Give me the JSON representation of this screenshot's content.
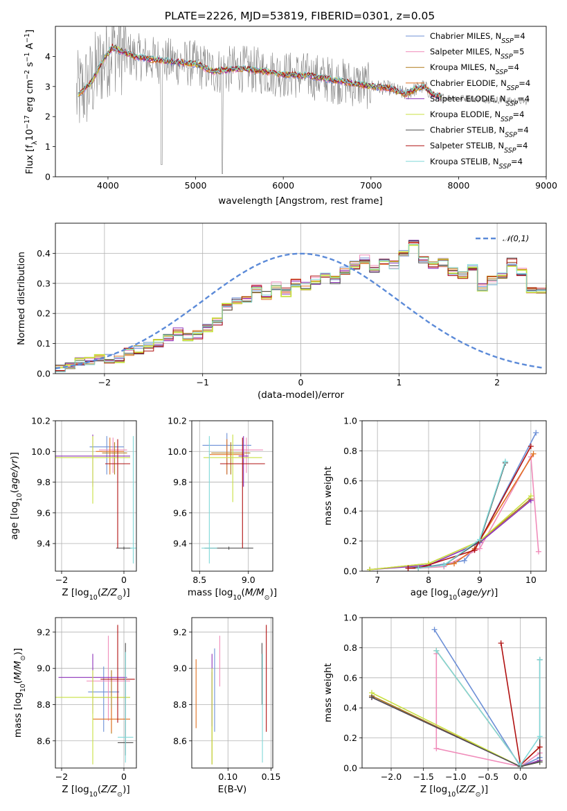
{
  "figure": {
    "title": "PLATE=2226, MJD=53819, FIBERID=0301, z=0.05"
  },
  "colors": {
    "Chabrier MILES": "#6c8fd6",
    "Salpeter MILES": "#f08cba",
    "Kroupa MILES": "#b07a1a",
    "Chabrier ELODIE": "#e07020",
    "Salpeter ELODIE": "#8c30b8",
    "Kroupa ELODIE": "#c8e040",
    "Chabrier STELIB": "#505050",
    "Salpeter STELIB": "#b01010",
    "Kroupa STELIB": "#80d8d8",
    "data": "#808080",
    "normal": "#5b8ad8",
    "grid": "#b0b0b0"
  },
  "chart_data": [
    {
      "id": "spectrum",
      "type": "line",
      "xlabel": "wavelength [Angstrom, rest frame]",
      "ylabel": "Flux [f_λ 10^-17 erg cm^-2 s^-1 A^-1]",
      "xlim": [
        3400,
        9000
      ],
      "ylim": [
        0,
        5
      ],
      "xticks": [
        "4000",
        "5000",
        "6000",
        "7000",
        "8000",
        "9000"
      ],
      "yticks": [
        "0",
        "1",
        "2",
        "3",
        "4"
      ],
      "grid": false,
      "legend_position": "right",
      "legend": [
        {
          "name": "Chabrier MILES",
          "nssp": "4"
        },
        {
          "name": "Salpeter MILES",
          "nssp": "5"
        },
        {
          "name": "Kroupa MILES",
          "nssp": "4"
        },
        {
          "name": "Chabrier ELODIE",
          "nssp": "4"
        },
        {
          "name": "Salpeter ELODIE",
          "nssp": "4"
        },
        {
          "name": "Kroupa ELODIE",
          "nssp": "4"
        },
        {
          "name": "Chabrier STELIB",
          "nssp": "4"
        },
        {
          "name": "Salpeter STELIB",
          "nssp": "4"
        },
        {
          "name": "Kroupa STELIB",
          "nssp": "4"
        }
      ],
      "continuum_model": {
        "x": [
          3650,
          3800,
          3950,
          4050,
          4300,
          4500,
          4800,
          5000,
          5200,
          5500,
          5800,
          6000,
          6300,
          6600,
          6800,
          7000,
          7200,
          7400,
          7500,
          7600,
          7700,
          7800
        ],
        "y": [
          2.7,
          3.1,
          3.9,
          4.3,
          4.0,
          3.9,
          3.8,
          3.75,
          3.5,
          3.6,
          3.5,
          3.4,
          3.35,
          3.2,
          3.1,
          3.0,
          2.95,
          2.75,
          2.9,
          3.0,
          2.75,
          2.65
        ]
      }
    },
    {
      "id": "residuals",
      "type": "histogram",
      "xlabel": "(data-model)/error",
      "ylabel": "Normed distribution",
      "xlim": [
        -2.5,
        2.5
      ],
      "ylim": [
        0,
        0.5
      ],
      "xticks": [
        "-2",
        "-1",
        "0",
        "1",
        "2"
      ],
      "yticks": [
        "0.0",
        "0.1",
        "0.2",
        "0.3",
        "0.4"
      ],
      "grid": true,
      "legend_label": "𝒩(0,1)",
      "bin_width": 0.1,
      "bins_start": -2.5,
      "mean_profile": [
        0.02,
        0.03,
        0.04,
        0.04,
        0.05,
        0.05,
        0.05,
        0.07,
        0.08,
        0.09,
        0.1,
        0.12,
        0.14,
        0.12,
        0.13,
        0.15,
        0.17,
        0.22,
        0.24,
        0.25,
        0.28,
        0.26,
        0.29,
        0.27,
        0.3,
        0.29,
        0.31,
        0.33,
        0.31,
        0.34,
        0.36,
        0.38,
        0.35,
        0.37,
        0.36,
        0.4,
        0.43,
        0.38,
        0.36,
        0.37,
        0.34,
        0.33,
        0.35,
        0.29,
        0.31,
        0.33,
        0.37,
        0.34,
        0.28,
        0.27,
        0.3,
        0.26,
        0.24,
        0.2,
        0.21,
        0.17,
        0.15,
        0.18,
        0.13,
        0.14,
        0.17,
        0.12,
        0.12,
        0.1,
        0.11,
        0.09,
        0.08,
        0.07,
        0.06,
        0.05,
        0.05,
        0.04,
        0.04,
        0.03
      ]
    },
    {
      "id": "age_vs_Z",
      "type": "scatter",
      "xlabel": "Z [log10(Z/Z⊙)]",
      "ylabel": "age  [log10(age/yr)]",
      "xlim": [
        -2.2,
        0.4
      ],
      "ylim": [
        9.22,
        10.2
      ],
      "xticks": [
        "-2",
        "0"
      ],
      "yticks": [
        "9.4",
        "9.6",
        "9.8",
        "10.0",
        "10.2"
      ],
      "grid": true,
      "series": [
        {
          "label": "Chabrier MILES",
          "x": -0.55,
          "xerr": 0.55,
          "y": 10.03,
          "yerr": [
            0.18,
            0.07
          ]
        },
        {
          "label": "Salpeter MILES",
          "x": -0.35,
          "xerr": 0.45,
          "y": 10.01,
          "yerr": [
            0.15,
            0.08
          ]
        },
        {
          "label": "Kroupa MILES",
          "x": -0.3,
          "xerr": 0.4,
          "y": 9.99,
          "yerr": [
            0.14,
            0.07
          ]
        },
        {
          "label": "Chabrier ELODIE",
          "x": -0.45,
          "xerr": 0.45,
          "y": 10.0,
          "yerr": [
            0.15,
            0.09
          ]
        },
        {
          "label": "Salpeter ELODIE",
          "x": -1.0,
          "xerr": 1.2,
          "y": 9.97,
          "yerr": [
            0.2,
            0.14
          ]
        },
        {
          "label": "Kroupa ELODIE",
          "x": -1.0,
          "xerr": 1.2,
          "y": 9.96,
          "yerr": [
            0.3,
            0.14
          ]
        },
        {
          "label": "Chabrier STELIB",
          "x": 0.0,
          "xerr": 0.25,
          "y": 9.37,
          "yerr": [
            0.01,
            0.01
          ]
        },
        {
          "label": "Salpeter STELIB",
          "x": -0.2,
          "xerr": 0.4,
          "y": 9.92,
          "yerr": [
            0.55,
            0.16
          ]
        },
        {
          "label": "Kroupa STELIB",
          "x": 0.3,
          "xerr": 0.1,
          "y": 9.37,
          "yerr": [
            0.1,
            0.73
          ]
        }
      ]
    },
    {
      "id": "age_vs_mass",
      "type": "scatter",
      "xlabel": "mass [log10(M/M⊙)]",
      "ylabel": "",
      "xlim": [
        8.42,
        9.25
      ],
      "ylim": [
        9.22,
        10.2
      ],
      "xticks": [
        "8.5",
        "9.0"
      ],
      "yticks": [
        "9.4",
        "9.6",
        "9.8",
        "10.0",
        "10.2"
      ],
      "grid": true,
      "series": [
        {
          "label": "Chabrier MILES",
          "x": 8.78,
          "xerr": 0.25,
          "y": 10.04,
          "yerr": [
            0.19,
            0.08
          ]
        },
        {
          "label": "Salpeter MILES",
          "x": 8.98,
          "xerr": 0.17,
          "y": 10.01,
          "yerr": [
            0.15,
            0.08
          ]
        },
        {
          "label": "Kroupa MILES",
          "x": 8.82,
          "xerr": 0.2,
          "y": 9.99,
          "yerr": [
            0.14,
            0.07
          ]
        },
        {
          "label": "Chabrier ELODIE",
          "x": 8.78,
          "xerr": 0.18,
          "y": 9.98,
          "yerr": [
            0.13,
            0.1
          ]
        },
        {
          "label": "Salpeter ELODIE",
          "x": 8.95,
          "xerr": 0.05,
          "y": 9.97,
          "yerr": [
            0.2,
            0.13
          ]
        },
        {
          "label": "Kroupa ELODIE",
          "x": 8.84,
          "xerr": 0.3,
          "y": 9.96,
          "yerr": [
            0.29,
            0.15
          ]
        },
        {
          "label": "Chabrier STELIB",
          "x": 8.8,
          "xerr": 0.25,
          "y": 9.37,
          "yerr": [
            0.01,
            0.01
          ]
        },
        {
          "label": "Salpeter STELIB",
          "x": 8.94,
          "xerr": 0.23,
          "y": 9.92,
          "yerr": [
            0.55,
            0.17
          ]
        },
        {
          "label": "Kroupa STELIB",
          "x": 8.6,
          "xerr": 0.08,
          "y": 9.37,
          "yerr": [
            0.1,
            0.73
          ]
        }
      ]
    },
    {
      "id": "weight_vs_age",
      "type": "line",
      "xlabel": "age  [log10(age/yr)]",
      "ylabel": "mass weight",
      "xlim": [
        6.7,
        10.3
      ],
      "ylim": [
        0,
        1
      ],
      "xticks": [
        "7",
        "8",
        "9",
        "10"
      ],
      "yticks": [
        "0.0",
        "0.2",
        "0.4",
        "0.6",
        "0.8",
        "1.0"
      ],
      "grid": true,
      "series": [
        {
          "label": "Chabrier MILES",
          "x": [
            7.8,
            8.7,
            9.0,
            10.1
          ],
          "y": [
            0.02,
            0.07,
            0.2,
            0.92
          ]
        },
        {
          "label": "Salpeter MILES",
          "x": [
            7.8,
            8.3,
            9.0,
            10.0,
            10.15
          ],
          "y": [
            0.02,
            0.03,
            0.15,
            0.76,
            0.13
          ]
        },
        {
          "label": "Kroupa MILES",
          "x": [
            6.85,
            8.0,
            9.0,
            10.0
          ],
          "y": [
            0.01,
            0.05,
            0.2,
            0.48
          ]
        },
        {
          "label": "Chabrier ELODIE",
          "x": [
            7.8,
            8.5,
            8.9,
            10.05
          ],
          "y": [
            0.02,
            0.05,
            0.15,
            0.78
          ]
        },
        {
          "label": "Salpeter ELODIE",
          "x": [
            6.85,
            8.0,
            9.0,
            10.0
          ],
          "y": [
            0.01,
            0.04,
            0.19,
            0.47
          ]
        },
        {
          "label": "Kroupa ELODIE",
          "x": [
            6.85,
            8.0,
            9.0,
            10.0
          ],
          "y": [
            0.01,
            0.05,
            0.2,
            0.5
          ]
        },
        {
          "label": "Chabrier STELIB",
          "x": [
            7.6,
            8.3,
            9.0,
            9.5
          ],
          "y": [
            0.02,
            0.04,
            0.2,
            0.72
          ]
        },
        {
          "label": "Salpeter STELIB",
          "x": [
            7.6,
            7.8,
            8.9,
            10.0
          ],
          "y": [
            0.02,
            0.02,
            0.14,
            0.83
          ]
        },
        {
          "label": "Kroupa STELIB",
          "x": [
            7.8,
            8.3,
            9.0,
            9.5
          ],
          "y": [
            0.02,
            0.04,
            0.21,
            0.73
          ]
        }
      ]
    },
    {
      "id": "mass_vs_Z",
      "type": "scatter",
      "xlabel": "Z [log10(Z/Z⊙)]",
      "ylabel": "mass [log10(M/M⊙)]",
      "xlim": [
        -2.2,
        0.4
      ],
      "ylim": [
        8.45,
        9.28
      ],
      "xticks": [
        "-2",
        "0"
      ],
      "yticks": [
        "8.6",
        "8.8",
        "9.0",
        "9.2"
      ],
      "grid": true,
      "series": [
        {
          "label": "Chabrier MILES",
          "x": -0.65,
          "xerr": 0.5,
          "y": 8.87,
          "yerr": [
            0.22,
            0.14
          ]
        },
        {
          "label": "Salpeter MILES",
          "x": -0.5,
          "xerr": 0.7,
          "y": 8.93,
          "yerr": [
            0.22,
            0.25
          ]
        },
        {
          "label": "Kroupa MILES",
          "x": -0.4,
          "xerr": 0.6,
          "y": 8.84,
          "yerr": [
            0.2,
            0.15
          ]
        },
        {
          "label": "Chabrier ELODIE",
          "x": -0.4,
          "xerr": 0.6,
          "y": 8.72,
          "yerr": [
            0.07,
            0.06
          ]
        },
        {
          "label": "Salpeter ELODIE",
          "x": -1.0,
          "xerr": 1.1,
          "y": 8.95,
          "yerr": [
            0.2,
            0.13
          ]
        },
        {
          "label": "Kroupa ELODIE",
          "x": -1.0,
          "xerr": 1.2,
          "y": 8.84,
          "yerr": [
            0.37,
            0.15
          ]
        },
        {
          "label": "Chabrier STELIB",
          "x": 0.05,
          "xerr": 0.25,
          "y": 8.59,
          "yerr": [
            0.07,
            0.55
          ]
        },
        {
          "label": "Salpeter STELIB",
          "x": -0.2,
          "xerr": 0.55,
          "y": 8.94,
          "yerr": [
            0.24,
            0.3
          ]
        },
        {
          "label": "Kroupa STELIB",
          "x": 0.05,
          "xerr": 0.25,
          "y": 8.62,
          "yerr": [
            0.14,
            0.47
          ]
        }
      ]
    },
    {
      "id": "mass_vs_ebv",
      "type": "scatter",
      "xlabel": "E(B-V)",
      "ylabel": "",
      "xlim": [
        0.058,
        0.152
      ],
      "ylim": [
        8.45,
        9.28
      ],
      "xticks": [
        "0.10",
        "0.15"
      ],
      "yticks": [
        "8.6",
        "8.8",
        "9.0",
        "9.2"
      ],
      "grid": true,
      "series": [
        {
          "label": "Chabrier MILES",
          "x": 0.0845,
          "y": 8.88,
          "yerr": [
            0.23,
            0.23
          ]
        },
        {
          "label": "Salpeter MILES",
          "x": 0.0905,
          "y": 9.0,
          "yerr": [
            0.1,
            0.18
          ]
        },
        {
          "label": "Kroupa MILES",
          "x": 0.0815,
          "y": 8.78,
          "yerr": [
            0.31,
            0.2
          ]
        },
        {
          "label": "Chabrier ELODIE",
          "x": 0.063,
          "y": 8.87,
          "yerr": [
            0.2,
            0.18
          ]
        },
        {
          "label": "Salpeter ELODIE",
          "x": 0.0815,
          "y": 8.9,
          "yerr": [
            0.22,
            0.18
          ]
        },
        {
          "label": "Kroupa ELODIE",
          "x": 0.0815,
          "y": 8.8,
          "yerr": [
            0.33,
            0.2
          ]
        },
        {
          "label": "Chabrier STELIB",
          "x": 0.1395,
          "y": 8.95,
          "yerr": [
            0.15,
            0.19
          ]
        },
        {
          "label": "Salpeter STELIB",
          "x": 0.1445,
          "y": 8.94,
          "yerr": [
            0.29,
            0.3
          ]
        },
        {
          "label": "Kroupa STELIB",
          "x": 0.14,
          "y": 8.78,
          "yerr": [
            0.3,
            0.3
          ]
        }
      ]
    },
    {
      "id": "weight_vs_Z",
      "type": "line",
      "xlabel": "Z [log10(Z/Z⊙)]",
      "ylabel": "mass weight",
      "xlim": [
        -2.45,
        0.4
      ],
      "ylim": [
        0,
        1
      ],
      "xticks": [
        "-2.0",
        "-1.5",
        "-1.0",
        "-0.5",
        "0.0"
      ],
      "yticks": [
        "0.0",
        "0.2",
        "0.4",
        "0.6",
        "0.8",
        "1.0"
      ],
      "grid": true,
      "series": [
        {
          "label": "Chabrier MILES",
          "x": [
            -1.33,
            0.0,
            0.3
          ],
          "y": [
            0.92,
            0.01,
            0.07
          ]
        },
        {
          "label": "Salpeter MILES",
          "x": [
            -1.3,
            -1.3,
            0.0,
            0.3
          ],
          "y": [
            0.76,
            0.13,
            0.01,
            0.1
          ]
        },
        {
          "label": "Kroupa MILES",
          "x": [
            -2.3,
            0.0,
            0.3
          ],
          "y": [
            0.48,
            0.01,
            0.05
          ]
        },
        {
          "label": "Chabrier ELODIE",
          "x": [
            -1.3,
            0.0,
            0.3
          ],
          "y": [
            0.78,
            0.02,
            0.14
          ]
        },
        {
          "label": "Salpeter ELODIE",
          "x": [
            -2.3,
            0.0,
            0.3
          ],
          "y": [
            0.47,
            0.01,
            0.05
          ]
        },
        {
          "label": "Kroupa ELODIE",
          "x": [
            -2.3,
            0.0,
            0.3
          ],
          "y": [
            0.5,
            0.01,
            0.04
          ]
        },
        {
          "label": "Chabrier STELIB",
          "x": [
            -2.3,
            0.0,
            0.3,
            0.3
          ],
          "y": [
            0.47,
            0.01,
            0.04,
            0.72
          ]
        },
        {
          "label": "Salpeter STELIB",
          "x": [
            -0.3,
            0.0,
            0.3
          ],
          "y": [
            0.83,
            0.02,
            0.14
          ]
        },
        {
          "label": "Kroupa STELIB",
          "x": [
            -1.3,
            0.0,
            0.3,
            0.3
          ],
          "y": [
            0.78,
            0.02,
            0.21,
            0.72
          ]
        }
      ]
    }
  ]
}
